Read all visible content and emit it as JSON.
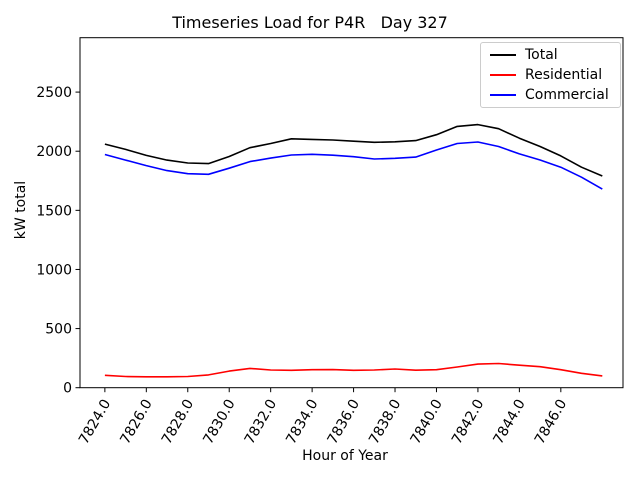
{
  "chart_data": {
    "type": "line",
    "title": "Timeseries Load for P4R   Day 327",
    "xlabel": "Hour of Year",
    "ylabel": "kW total",
    "x": [
      7824,
      7825,
      7826,
      7827,
      7828,
      7829,
      7830,
      7831,
      7832,
      7833,
      7834,
      7835,
      7836,
      7837,
      7838,
      7839,
      7840,
      7841,
      7842,
      7843,
      7844,
      7845,
      7846,
      7847,
      7848
    ],
    "series": [
      {
        "name": "Total",
        "color": "#000000",
        "values": [
          2060,
          2015,
          1965,
          1925,
          1900,
          1895,
          1955,
          2030,
          2065,
          2105,
          2100,
          2095,
          2085,
          2075,
          2080,
          2090,
          2140,
          2210,
          2225,
          2190,
          2110,
          2040,
          1960,
          1865,
          1790
        ]
      },
      {
        "name": "Residential",
        "color": "#ff0000",
        "values": [
          105,
          95,
          92,
          92,
          95,
          108,
          140,
          163,
          150,
          147,
          152,
          153,
          147,
          150,
          158,
          148,
          152,
          175,
          200,
          205,
          190,
          178,
          152,
          122,
          100
        ]
      },
      {
        "name": "Commercial",
        "color": "#0000ff",
        "values": [
          1972,
          1925,
          1878,
          1836,
          1810,
          1805,
          1856,
          1912,
          1942,
          1968,
          1974,
          1966,
          1954,
          1934,
          1940,
          1950,
          2010,
          2065,
          2078,
          2040,
          1977,
          1926,
          1865,
          1780,
          1680
        ]
      }
    ],
    "xticks": [
      7824,
      7826,
      7828,
      7830,
      7832,
      7834,
      7836,
      7838,
      7840,
      7842,
      7844,
      7846
    ],
    "xtick_labels": [
      "7824.0",
      "7826.0",
      "7828.0",
      "7830.0",
      "7832.0",
      "7834.0",
      "7836.0",
      "7838.0",
      "7840.0",
      "7842.0",
      "7844.0",
      "7846.0"
    ],
    "yticks": [
      0,
      500,
      1000,
      1500,
      2000,
      2500
    ],
    "ytick_labels": [
      "0",
      "500",
      "1000",
      "1500",
      "2000",
      "2500"
    ],
    "xlim": [
      7822.8,
      7849.0
    ],
    "ylim": [
      0,
      2960
    ],
    "xtick_rotation_deg": 60,
    "grid": false,
    "legend": {
      "position": "upper right",
      "entries": [
        "Total",
        "Residential",
        "Commercial"
      ]
    }
  }
}
